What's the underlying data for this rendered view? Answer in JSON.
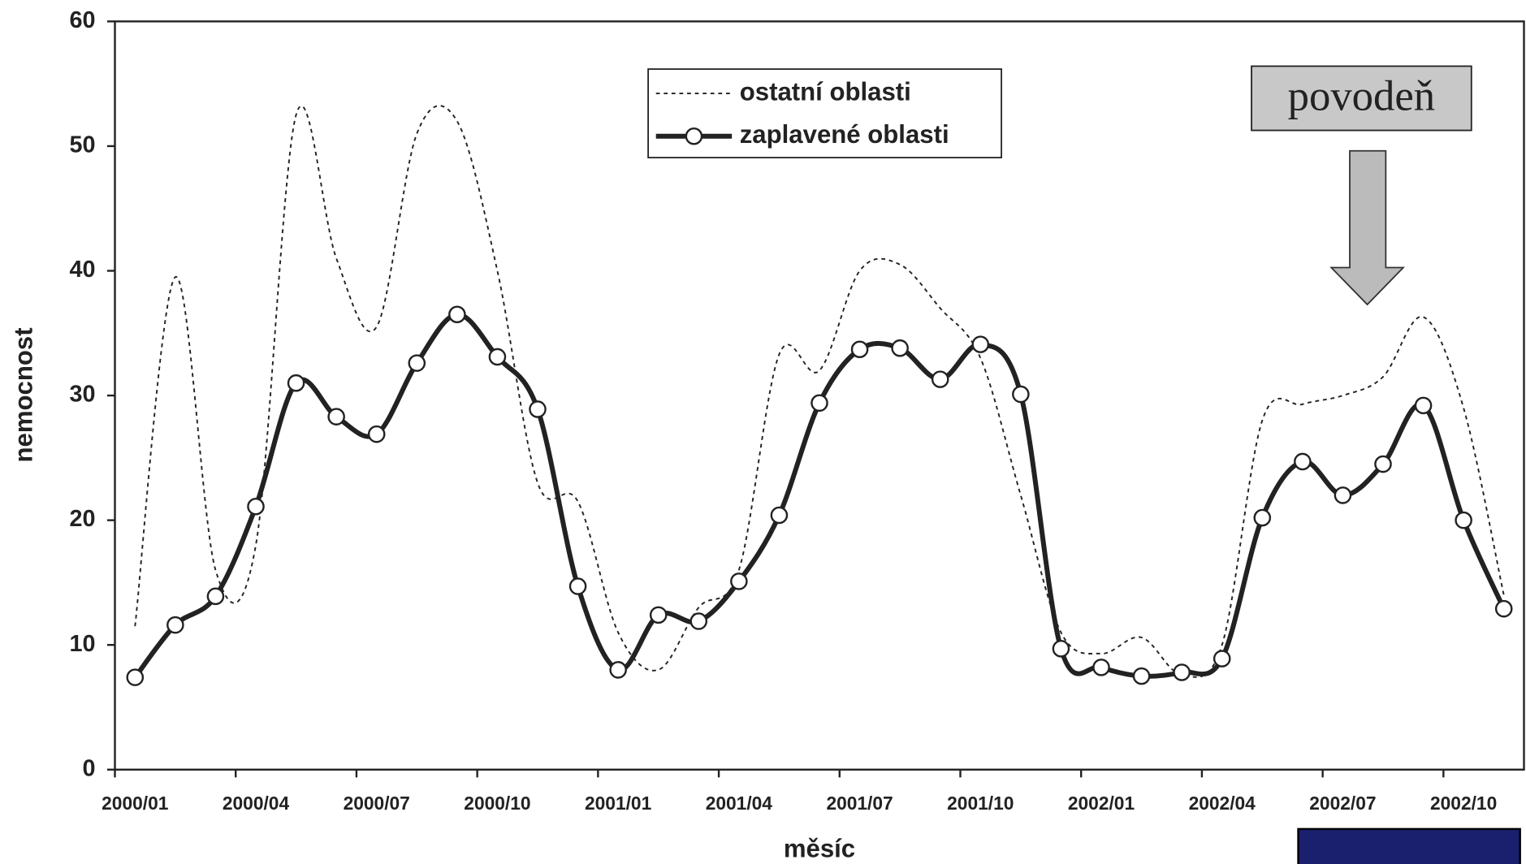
{
  "chart_data": {
    "type": "line",
    "xlabel": "měsíc",
    "ylabel": "nemocnost",
    "categories": [
      "2000/01",
      null,
      null,
      "2000/04",
      null,
      null,
      "2000/07",
      null,
      null,
      "2000/10",
      null,
      null,
      "2001/01",
      null,
      null,
      "2001/04",
      null,
      null,
      "2001/07",
      null,
      null,
      "2001/10",
      null,
      null,
      "2002/01",
      null,
      null,
      "2002/04",
      null,
      null,
      "2002/07",
      null,
      null,
      "2002/10",
      null
    ],
    "series": [
      {
        "name": "ostatní oblasti",
        "color": "#222222",
        "dashed": true,
        "marker": false,
        "values": [
          11.5,
          39.5,
          16,
          18,
          52.5,
          41,
          35.5,
          51,
          52,
          40,
          23,
          21.5,
          11,
          8,
          13,
          16,
          33.3,
          32,
          40,
          40.5,
          37,
          33,
          22,
          11,
          9.3,
          10.6,
          7.6,
          10,
          28,
          29.3,
          30,
          31.5,
          36.3,
          29,
          14
        ]
      },
      {
        "name": "zaplavené oblasti",
        "color": "#222222",
        "dashed": false,
        "marker": true,
        "values": [
          7.4,
          11.6,
          13.9,
          21.1,
          31.0,
          28.3,
          26.9,
          32.6,
          36.5,
          33.1,
          28.9,
          14.7,
          8.0,
          12.4,
          11.9,
          15.1,
          20.4,
          29.4,
          33.7,
          33.8,
          31.3,
          34.1,
          30.1,
          9.7,
          8.2,
          7.5,
          7.8,
          8.9,
          20.2,
          24.7,
          22.0,
          24.5,
          29.2,
          20.0,
          12.9
        ]
      }
    ],
    "ylim": [
      0,
      60
    ],
    "yticks": [
      0,
      10,
      20,
      30,
      40,
      50,
      60
    ],
    "grid": false,
    "annotation": "povodeň"
  }
}
